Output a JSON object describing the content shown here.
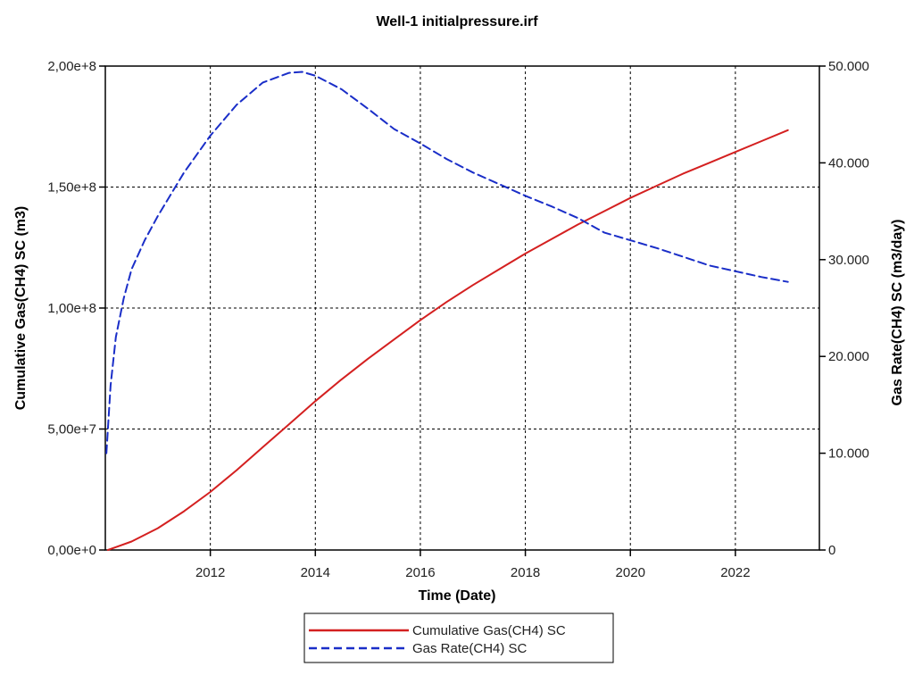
{
  "chart_data": {
    "type": "line",
    "title": "Well-1 initialpressure.irf",
    "xlabel": "Time (Date)",
    "ylabel": "Cumulative Gas(CH4) SC (m3)",
    "y2label": "Gas Rate(CH4) SC (m3/day)",
    "xlim": [
      2010.0,
      2023.6
    ],
    "ylim": [
      0,
      200000000
    ],
    "y2lim": [
      0,
      50000
    ],
    "x_ticks": [
      2012,
      2014,
      2016,
      2018,
      2020,
      2022
    ],
    "x_tick_labels": [
      "2012",
      "2014",
      "2016",
      "2018",
      "2020",
      "2022"
    ],
    "y_ticks": [
      0,
      50000000,
      100000000,
      150000000,
      200000000
    ],
    "y_tick_labels": [
      "0,00e+0",
      "5,00e+7",
      "1,00e+8",
      "1,50e+8",
      "2,00e+8"
    ],
    "y2_ticks": [
      0,
      10000,
      20000,
      30000,
      40000,
      50000
    ],
    "y2_tick_labels": [
      "0",
      "10.000",
      "20.000",
      "30.000",
      "40.000",
      "50.000"
    ],
    "grid": true,
    "legend_position": "bottom-center",
    "series": [
      {
        "name": "Cumulative Gas(CH4) SC",
        "axis": "left",
        "color": "#d42020",
        "dash": "solid",
        "x": [
          2010.05,
          2010.5,
          2011.0,
          2011.5,
          2012.0,
          2012.5,
          2013.0,
          2013.5,
          2014.0,
          2014.5,
          2015.0,
          2015.5,
          2016.0,
          2016.5,
          2017.0,
          2017.5,
          2018.0,
          2018.5,
          2019.0,
          2019.5,
          2020.0,
          2020.5,
          2021.0,
          2021.5,
          2022.0,
          2022.5,
          2023.0
        ],
        "y": [
          0,
          3500000,
          9000000,
          16000000,
          24000000,
          33000000,
          42500000,
          52000000,
          61500000,
          70500000,
          79000000,
          87000000,
          95000000,
          102500000,
          109500000,
          116000000,
          122500000,
          128500000,
          134500000,
          140000000,
          145500000,
          150500000,
          155500000,
          160000000,
          164500000,
          169000000,
          173500000
        ]
      },
      {
        "name": "Gas Rate(CH4) SC",
        "axis": "right",
        "color": "#1a2ec8",
        "dash": "dashed",
        "x": [
          2010.02,
          2010.1,
          2010.2,
          2010.35,
          2010.5,
          2010.75,
          2011.0,
          2011.5,
          2012.0,
          2012.5,
          2013.0,
          2013.5,
          2013.75,
          2014.0,
          2014.5,
          2015.0,
          2015.5,
          2016.0,
          2016.5,
          2017.0,
          2017.5,
          2018.0,
          2018.5,
          2019.0,
          2019.5,
          2020.0,
          2020.5,
          2021.0,
          2021.5,
          2022.0,
          2022.5,
          2023.0
        ],
        "y": [
          10000,
          17000,
          22000,
          26000,
          29000,
          32000,
          34500,
          39000,
          42800,
          46000,
          48300,
          49300,
          49400,
          49000,
          47600,
          45600,
          43500,
          42000,
          40400,
          39000,
          37800,
          36600,
          35500,
          34300,
          32800,
          32000,
          31200,
          30300,
          29400,
          28800,
          28200,
          27700
        ]
      }
    ]
  }
}
